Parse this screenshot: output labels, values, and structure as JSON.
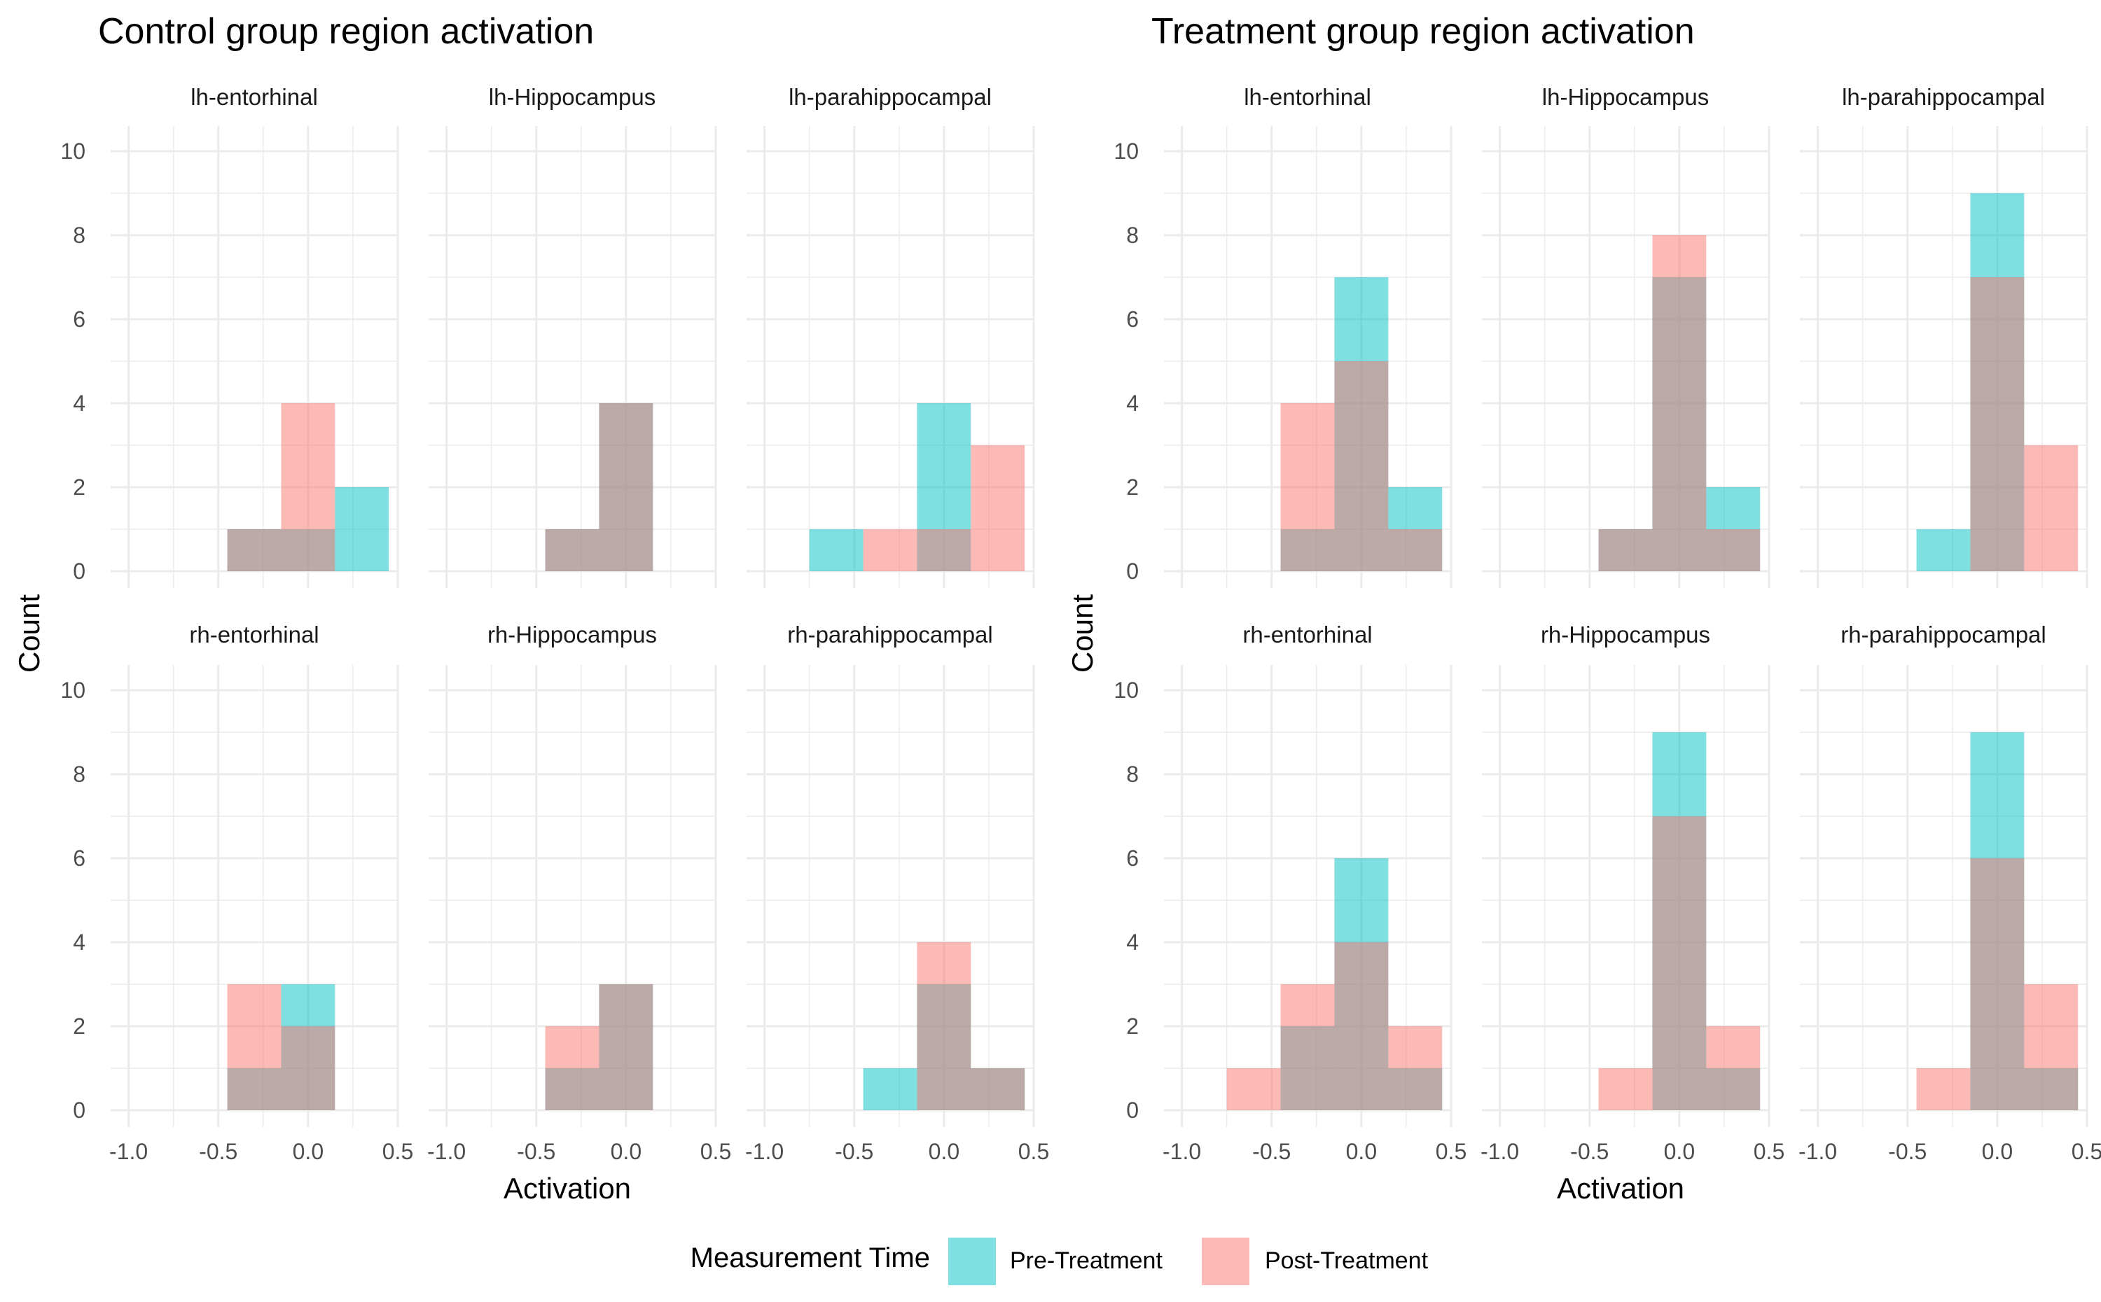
{
  "colors": {
    "pre": "#00BFC4",
    "post": "#F8766D",
    "grid": "#EBEBEB",
    "text": "#000000",
    "axis_text": "#4D4D4D"
  },
  "legend": {
    "title": "Measurement Time",
    "position": "bottom",
    "items": [
      {
        "label": "Pre-Treatment",
        "color": "#00BFC4"
      },
      {
        "label": "Post-Treatment",
        "color": "#F8766D"
      }
    ]
  },
  "chart_data": [
    {
      "type": "histogram",
      "title": "Control group region activation",
      "xlabel": "Activation",
      "ylabel": "Count",
      "xlim": [
        -1.1,
        0.5
      ],
      "ylim": [
        -0.4,
        10.6
      ],
      "xticks": [
        "-1.0",
        "-0.5",
        "0.0",
        "0.5"
      ],
      "xtick_values": [
        -1.0,
        -0.5,
        0.0,
        0.5
      ],
      "yticks": [
        "0",
        "2",
        "4",
        "6",
        "8",
        "10"
      ],
      "ytick_values": [
        0,
        2,
        4,
        6,
        8,
        10
      ],
      "grid": true,
      "bin_width": 0.3,
      "bins": [
        -0.6,
        -0.3,
        0.0,
        0.3
      ],
      "facets": [
        {
          "name": "lh-entorhinal",
          "pre": [
            0,
            1,
            1,
            2
          ],
          "post": [
            0,
            1,
            4,
            0
          ]
        },
        {
          "name": "lh-Hippocampus",
          "pre": [
            0,
            1,
            4,
            0
          ],
          "post": [
            0,
            1,
            4,
            0
          ]
        },
        {
          "name": "lh-parahippocampal",
          "pre": [
            1,
            0,
            4,
            0
          ],
          "post": [
            0,
            1,
            1,
            3
          ]
        },
        {
          "name": "rh-entorhinal",
          "pre": [
            0,
            1,
            3,
            0
          ],
          "post": [
            0,
            3,
            2,
            0
          ]
        },
        {
          "name": "rh-Hippocampus",
          "pre": [
            0,
            1,
            3,
            0
          ],
          "post": [
            0,
            2,
            3,
            0
          ]
        },
        {
          "name": "rh-parahippocampal",
          "pre": [
            0,
            1,
            3,
            1
          ],
          "post": [
            0,
            0,
            4,
            1
          ]
        }
      ]
    },
    {
      "type": "histogram",
      "title": "Treatment group region activation",
      "xlabel": "Activation",
      "ylabel": "Count",
      "xlim": [
        -1.1,
        0.5
      ],
      "ylim": [
        -0.4,
        10.6
      ],
      "xticks": [
        "-1.0",
        "-0.5",
        "0.0",
        "0.5"
      ],
      "xtick_values": [
        -1.0,
        -0.5,
        0.0,
        0.5
      ],
      "yticks": [
        "0",
        "2",
        "4",
        "6",
        "8",
        "10"
      ],
      "ytick_values": [
        0,
        2,
        4,
        6,
        8,
        10
      ],
      "grid": true,
      "bin_width": 0.3,
      "bins": [
        -0.6,
        -0.3,
        0.0,
        0.3
      ],
      "facets": [
        {
          "name": "lh-entorhinal",
          "pre": [
            0,
            1,
            7,
            2
          ],
          "post": [
            0,
            4,
            5,
            1
          ]
        },
        {
          "name": "lh-Hippocampus",
          "pre": [
            0,
            1,
            7,
            2
          ],
          "post": [
            0,
            1,
            8,
            1
          ]
        },
        {
          "name": "lh-parahippocampal",
          "pre": [
            0,
            1,
            9,
            0
          ],
          "post": [
            0,
            0,
            7,
            3
          ]
        },
        {
          "name": "rh-entorhinal",
          "pre": [
            0,
            2,
            6,
            1
          ],
          "post": [
            1,
            3,
            4,
            2
          ]
        },
        {
          "name": "rh-Hippocampus",
          "pre": [
            0,
            0,
            9,
            1
          ],
          "post": [
            0,
            1,
            7,
            2
          ]
        },
        {
          "name": "rh-parahippocampal",
          "pre": [
            0,
            0,
            9,
            1
          ],
          "post": [
            0,
            1,
            6,
            3
          ]
        }
      ]
    }
  ]
}
